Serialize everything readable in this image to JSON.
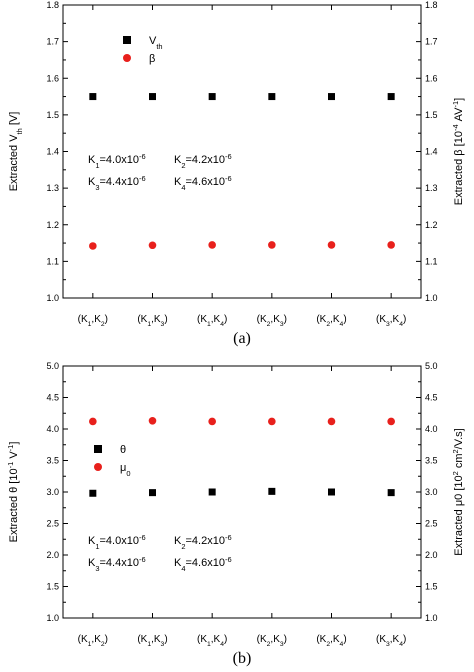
{
  "chart_data": [
    {
      "type": "scatter",
      "panel_label": "(a)",
      "categories": [
        "(K1,K2)",
        "(K1,K3)",
        "(K1,K4)",
        "(K2,K3)",
        "(K2,K4)",
        "(K3,K4)"
      ],
      "ylabel_left": "Extracted V_th [V]",
      "ylabel_right": "Extracted β [10^-4 AV^-1]",
      "ylim": [
        1.0,
        1.8
      ],
      "yticks": [
        "1.0",
        "1.1",
        "1.2",
        "1.3",
        "1.4",
        "1.5",
        "1.6",
        "1.7",
        "1.8"
      ],
      "series": [
        {
          "name": "V_th",
          "marker": "square",
          "color": "#000000",
          "values": [
            1.55,
            1.55,
            1.55,
            1.55,
            1.55,
            1.55
          ]
        },
        {
          "name": "β",
          "marker": "circle",
          "color": "#e8201c",
          "values": [
            1.142,
            1.144,
            1.145,
            1.145,
            1.145,
            1.145
          ]
        }
      ],
      "annotation": {
        "line1": [
          "K1=4.0x10-6",
          "K2=4.2x10-6"
        ],
        "line2": [
          "K3=4.4x10-6",
          "K4=4.6x10-6"
        ]
      },
      "legend_position": "top-left",
      "grid": false
    },
    {
      "type": "scatter",
      "panel_label": "(b)",
      "categories": [
        "(K1,K2)",
        "(K1,K3)",
        "(K1,K4)",
        "(K2,K3)",
        "(K2,K4)",
        "(K3,K4)"
      ],
      "ylabel_left": "Extracted θ [10^-1 V^-1]",
      "ylabel_right": "Extracted μ0 [10^2 cm^2/V.s]",
      "ylim": [
        1.0,
        5.0
      ],
      "yticks": [
        "1.0",
        "1.5",
        "2.0",
        "2.5",
        "3.0",
        "3.5",
        "4.0",
        "4.5",
        "5.0"
      ],
      "series": [
        {
          "name": "θ",
          "marker": "square",
          "color": "#000000",
          "values": [
            2.98,
            2.99,
            3.0,
            3.01,
            3.0,
            2.99
          ]
        },
        {
          "name": "μ0",
          "marker": "circle",
          "color": "#e8201c",
          "values": [
            4.12,
            4.13,
            4.12,
            4.12,
            4.12,
            4.12
          ]
        }
      ],
      "annotation": {
        "line1": [
          "K1=4.0x10-6",
          "K2=4.2x10-6"
        ],
        "line2": [
          "K3=4.4x10-6",
          "K4=4.6x10-6"
        ]
      },
      "legend_position": "middle-left",
      "grid": false
    }
  ]
}
